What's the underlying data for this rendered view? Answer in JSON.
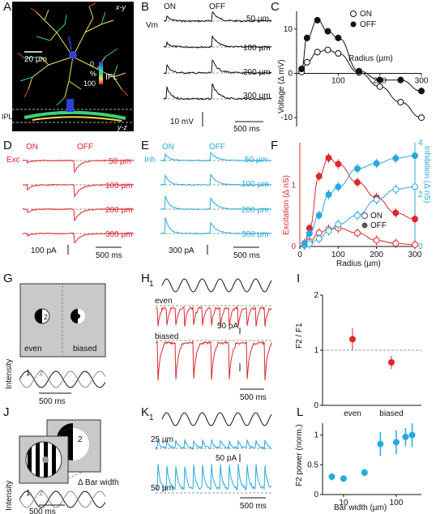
{
  "panels": {
    "A": {
      "label": "A",
      "view_xy": "x-y",
      "view_yz": "y-z",
      "scale": "20 µm",
      "cbar_pct": "%",
      "cbar_top": "0",
      "cbar_bot": "100",
      "cbar_label": "IPL",
      "ipl_label": "IPL"
    },
    "B": {
      "label": "B",
      "on": "ON",
      "off": "OFF",
      "vm": "Vm",
      "radii": [
        "50 µm",
        "100 µm",
        "200 µm",
        "300 µm"
      ],
      "vscale": "10 mV",
      "tscale": "500 ms"
    },
    "C": {
      "label": "C",
      "ylabel": "Voltage (Δ mV)",
      "xlabel": "Radius (µm)",
      "legend_on": "ON",
      "legend_off": "OFF",
      "xticks": [
        "100",
        "200",
        "300"
      ],
      "yticks": [
        "10",
        "0",
        "-10"
      ]
    },
    "D": {
      "label": "D",
      "tag": "Exc",
      "on": "ON",
      "off": "OFF",
      "radii": [
        "50 µm",
        "100 µm",
        "200 µm",
        "300 µm"
      ],
      "iscale": "100 pA",
      "tscale": "500 ms"
    },
    "E": {
      "label": "E",
      "tag": "Inh",
      "on": "ON",
      "off": "OFF",
      "radii": [
        "50 µm",
        "100 µm",
        "200 µm",
        "300 µm"
      ],
      "iscale": "300 pA",
      "tscale": "500 ms"
    },
    "F": {
      "label": "F",
      "ylabel_left": "Excitation (Δ nS)",
      "ylabel_right": "Inhibition (Δ nS)",
      "xlabel": "Radius (µm)",
      "legend_on": "ON",
      "legend_off": "OFF",
      "xticks": [
        "0",
        "100",
        "200",
        "300"
      ],
      "yticks_left": [
        "0",
        "1"
      ],
      "yticks_right": [
        "0",
        "2",
        "4"
      ]
    },
    "G": {
      "label": "G",
      "stim_num": "2",
      "even": "even",
      "biased": "biased",
      "ylabel": "Intensity",
      "wave1": "1",
      "wave2": "2",
      "tscale": "500 ms"
    },
    "H": {
      "label": "H",
      "wave_label": "1",
      "even": "even",
      "biased": "biased",
      "iscale": "50 pA",
      "tscale": "500 ms"
    },
    "I": {
      "label": "I",
      "ylabel": "F2 / F1",
      "yticks": [
        "2",
        "1",
        "0"
      ],
      "xticks": [
        "even",
        "biased"
      ]
    },
    "J": {
      "label": "J",
      "stim1": "1",
      "stim2": "2",
      "bar_width": "Δ Bar width",
      "ylabel": "Intensity",
      "wave1": "1",
      "wave2": "2",
      "tscale": "500 ms"
    },
    "K": {
      "label": "K",
      "wave_label": "1",
      "w25": "25 µm",
      "w50": "50 µm",
      "iscale": "50 pA",
      "tscale": "500 ms"
    },
    "L": {
      "label": "L",
      "ylabel": "F2 power (norm.)",
      "xlabel": "Bar width (µm)",
      "yticks": [
        "1",
        "0.5",
        "0"
      ],
      "xticks": [
        "10",
        "100"
      ]
    }
  },
  "chart_data": [
    {
      "type": "line",
      "panel": "C",
      "title": "",
      "xlabel": "Radius (µm)",
      "ylabel": "Voltage (Δ mV)",
      "xlim": [
        0,
        300
      ],
      "ylim": [
        -12,
        14
      ],
      "series": [
        {
          "name": "ON",
          "x": [
            12,
            25,
            50,
            75,
            100,
            150,
            200,
            250,
            300
          ],
          "y": [
            0.3,
            2.5,
            4.8,
            5.3,
            4.5,
            0.2,
            -3.0,
            -6.5,
            -10.0
          ]
        },
        {
          "name": "OFF",
          "x": [
            12,
            25,
            50,
            75,
            100,
            150,
            200,
            250,
            300
          ],
          "y": [
            1.0,
            8.0,
            12.0,
            9.5,
            8.0,
            0.5,
            -1.5,
            -1.5,
            -4.0
          ]
        }
      ]
    },
    {
      "type": "line",
      "panel": "F",
      "title": "",
      "xlabel": "Radius (µm)",
      "ylabel": "Excitation (Δ nS)",
      "y2label": "Inhibition (Δ nS)",
      "xlim": [
        0,
        300
      ],
      "ylim": [
        0,
        1.7
      ],
      "y2lim": [
        0,
        4
      ],
      "series": [
        {
          "name": "ON",
          "axis": "left",
          "x": [
            12,
            25,
            50,
            75,
            100,
            150,
            200,
            250,
            300
          ],
          "y": [
            0.02,
            0.08,
            0.22,
            0.28,
            0.3,
            0.22,
            0.1,
            0.05,
            0.03
          ]
        },
        {
          "name": "OFF",
          "axis": "left",
          "x": [
            12,
            25,
            50,
            75,
            100,
            150,
            200,
            250,
            300
          ],
          "y": [
            0.05,
            0.3,
            1.15,
            1.45,
            1.35,
            1.05,
            0.8,
            0.55,
            0.45
          ]
        },
        {
          "name": "ON",
          "axis": "right",
          "x": [
            12,
            25,
            50,
            75,
            100,
            150,
            200,
            250,
            300
          ],
          "y": [
            0.05,
            0.1,
            0.3,
            0.6,
            0.85,
            1.2,
            1.8,
            2.2,
            2.3
          ]
        },
        {
          "name": "OFF",
          "axis": "right",
          "x": [
            12,
            25,
            50,
            75,
            100,
            150,
            200,
            250,
            300
          ],
          "y": [
            0.1,
            0.5,
            1.2,
            2.0,
            2.3,
            3.0,
            3.2,
            3.4,
            3.5
          ]
        }
      ]
    },
    {
      "type": "scatter",
      "panel": "I",
      "title": "",
      "ylabel": "F2 / F1",
      "ylim": [
        0,
        2
      ],
      "categories": [
        "even",
        "biased"
      ],
      "values": [
        1.2,
        0.78
      ],
      "errors": [
        0.2,
        0.12
      ],
      "reference_line": 1.0
    },
    {
      "type": "scatter",
      "panel": "L",
      "title": "",
      "xlabel": "Bar width (µm)",
      "ylabel": "F2 power (norm.)",
      "xscale": "log",
      "ylim": [
        0,
        1.2
      ],
      "x": [
        6,
        10,
        25,
        50,
        100,
        150,
        200
      ],
      "y": [
        0.3,
        0.27,
        0.37,
        0.85,
        0.88,
        0.97,
        1.0
      ],
      "errors": [
        0.06,
        0.05,
        0.06,
        0.2,
        0.2,
        0.15,
        0.2
      ]
    }
  ]
}
